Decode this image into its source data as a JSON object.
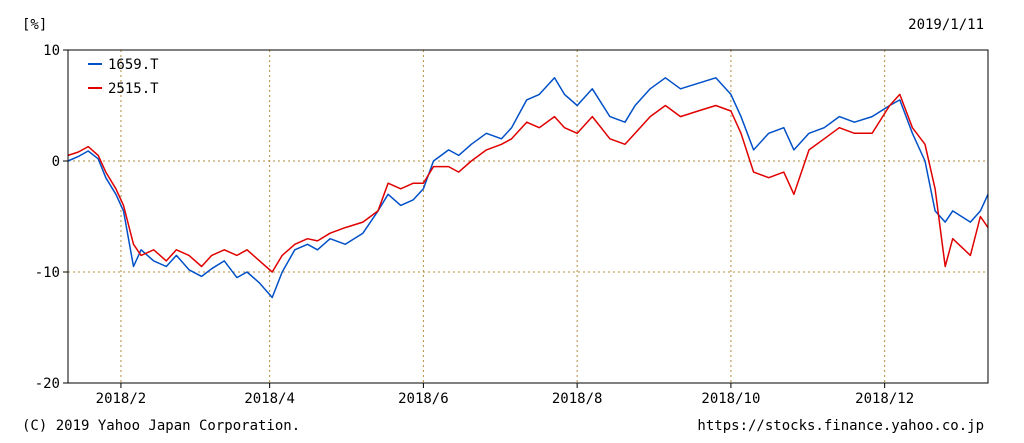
{
  "header": {
    "unit_label": "[%]",
    "date_label": "2019/1/11"
  },
  "footer": {
    "copyright": "(C) 2019 Yahoo Japan Corporation.",
    "url": "https://stocks.finance.yahoo.co.jp"
  },
  "colors": {
    "series_1659": "#0050c8",
    "series_2515": "#e00000",
    "grid": "#b48c3c",
    "axis": "#000000"
  },
  "chart_data": {
    "type": "line",
    "title": "",
    "xlabel": "",
    "ylabel": "[%]",
    "ylim": [
      -20,
      10
    ],
    "yticks": [
      10,
      0,
      -10,
      -20
    ],
    "xlim": [
      "2018-01-11",
      "2019-01-11"
    ],
    "xticks": [
      {
        "date": "2018-02-01",
        "label": "2018/2"
      },
      {
        "date": "2018-04-01",
        "label": "2018/4"
      },
      {
        "date": "2018-06-01",
        "label": "2018/6"
      },
      {
        "date": "2018-08-01",
        "label": "2018/8"
      },
      {
        "date": "2018-10-01",
        "label": "2018/10"
      },
      {
        "date": "2018-12-01",
        "label": "2018/12"
      }
    ],
    "grid": true,
    "legend": "top-left",
    "series": [
      {
        "name": "1659.T",
        "color": "#0050c8",
        "points": [
          [
            "2018-01-11",
            0.0
          ],
          [
            "2018-01-15",
            0.4
          ],
          [
            "2018-01-19",
            0.9
          ],
          [
            "2018-01-23",
            0.2
          ],
          [
            "2018-01-26",
            -1.5
          ],
          [
            "2018-01-30",
            -3.0
          ],
          [
            "2018-02-02",
            -4.5
          ],
          [
            "2018-02-06",
            -9.5
          ],
          [
            "2018-02-09",
            -8.0
          ],
          [
            "2018-02-14",
            -9.0
          ],
          [
            "2018-02-19",
            -9.5
          ],
          [
            "2018-02-23",
            -8.5
          ],
          [
            "2018-02-28",
            -9.8
          ],
          [
            "2018-03-05",
            -10.4
          ],
          [
            "2018-03-09",
            -9.7
          ],
          [
            "2018-03-14",
            -9.0
          ],
          [
            "2018-03-19",
            -10.5
          ],
          [
            "2018-03-23",
            -10.0
          ],
          [
            "2018-03-28",
            -11.0
          ],
          [
            "2018-04-02",
            -12.3
          ],
          [
            "2018-04-06",
            -10.0
          ],
          [
            "2018-04-11",
            -8.0
          ],
          [
            "2018-04-16",
            -7.5
          ],
          [
            "2018-04-20",
            -8.0
          ],
          [
            "2018-04-25",
            -7.0
          ],
          [
            "2018-05-01",
            -7.5
          ],
          [
            "2018-05-08",
            -6.5
          ],
          [
            "2018-05-14",
            -4.5
          ],
          [
            "2018-05-18",
            -3.0
          ],
          [
            "2018-05-23",
            -4.0
          ],
          [
            "2018-05-28",
            -3.5
          ],
          [
            "2018-06-01",
            -2.5
          ],
          [
            "2018-06-05",
            0.0
          ],
          [
            "2018-06-11",
            1.0
          ],
          [
            "2018-06-15",
            0.5
          ],
          [
            "2018-06-20",
            1.5
          ],
          [
            "2018-06-26",
            2.5
          ],
          [
            "2018-07-02",
            2.0
          ],
          [
            "2018-07-06",
            3.0
          ],
          [
            "2018-07-12",
            5.5
          ],
          [
            "2018-07-17",
            6.0
          ],
          [
            "2018-07-23",
            7.5
          ],
          [
            "2018-07-27",
            6.0
          ],
          [
            "2018-08-01",
            5.0
          ],
          [
            "2018-08-07",
            6.5
          ],
          [
            "2018-08-14",
            4.0
          ],
          [
            "2018-08-20",
            3.5
          ],
          [
            "2018-08-24",
            5.0
          ],
          [
            "2018-08-30",
            6.5
          ],
          [
            "2018-09-05",
            7.5
          ],
          [
            "2018-09-11",
            6.5
          ],
          [
            "2018-09-18",
            7.0
          ],
          [
            "2018-09-25",
            7.5
          ],
          [
            "2018-10-01",
            6.0
          ],
          [
            "2018-10-05",
            4.0
          ],
          [
            "2018-10-10",
            1.0
          ],
          [
            "2018-10-16",
            2.5
          ],
          [
            "2018-10-22",
            3.0
          ],
          [
            "2018-10-26",
            1.0
          ],
          [
            "2018-11-01",
            2.5
          ],
          [
            "2018-11-07",
            3.0
          ],
          [
            "2018-11-13",
            4.0
          ],
          [
            "2018-11-19",
            3.5
          ],
          [
            "2018-11-26",
            4.0
          ],
          [
            "2018-12-03",
            5.0
          ],
          [
            "2018-12-07",
            5.5
          ],
          [
            "2018-12-12",
            2.5
          ],
          [
            "2018-12-17",
            0.0
          ],
          [
            "2018-12-21",
            -4.5
          ],
          [
            "2018-12-25",
            -5.5
          ],
          [
            "2018-12-28",
            -4.5
          ],
          [
            "2019-01-04",
            -5.5
          ],
          [
            "2019-01-08",
            -4.5
          ],
          [
            "2019-01-11",
            -3.0
          ]
        ]
      },
      {
        "name": "2515.T",
        "color": "#e00000",
        "points": [
          [
            "2018-01-11",
            0.5
          ],
          [
            "2018-01-15",
            0.8
          ],
          [
            "2018-01-19",
            1.3
          ],
          [
            "2018-01-23",
            0.5
          ],
          [
            "2018-01-26",
            -1.0
          ],
          [
            "2018-01-30",
            -2.5
          ],
          [
            "2018-02-02",
            -4.0
          ],
          [
            "2018-02-06",
            -7.5
          ],
          [
            "2018-02-09",
            -8.5
          ],
          [
            "2018-02-14",
            -8.0
          ],
          [
            "2018-02-19",
            -9.0
          ],
          [
            "2018-02-23",
            -8.0
          ],
          [
            "2018-02-28",
            -8.5
          ],
          [
            "2018-03-05",
            -9.5
          ],
          [
            "2018-03-09",
            -8.5
          ],
          [
            "2018-03-14",
            -8.0
          ],
          [
            "2018-03-19",
            -8.5
          ],
          [
            "2018-03-23",
            -8.0
          ],
          [
            "2018-03-28",
            -9.0
          ],
          [
            "2018-04-02",
            -10.0
          ],
          [
            "2018-04-06",
            -8.5
          ],
          [
            "2018-04-11",
            -7.5
          ],
          [
            "2018-04-16",
            -7.0
          ],
          [
            "2018-04-20",
            -7.2
          ],
          [
            "2018-04-25",
            -6.5
          ],
          [
            "2018-05-01",
            -6.0
          ],
          [
            "2018-05-08",
            -5.5
          ],
          [
            "2018-05-14",
            -4.5
          ],
          [
            "2018-05-18",
            -2.0
          ],
          [
            "2018-05-23",
            -2.5
          ],
          [
            "2018-05-28",
            -2.0
          ],
          [
            "2018-06-01",
            -2.0
          ],
          [
            "2018-06-05",
            -0.5
          ],
          [
            "2018-06-11",
            -0.5
          ],
          [
            "2018-06-15",
            -1.0
          ],
          [
            "2018-06-20",
            0.0
          ],
          [
            "2018-06-26",
            1.0
          ],
          [
            "2018-07-02",
            1.5
          ],
          [
            "2018-07-06",
            2.0
          ],
          [
            "2018-07-12",
            3.5
          ],
          [
            "2018-07-17",
            3.0
          ],
          [
            "2018-07-23",
            4.0
          ],
          [
            "2018-07-27",
            3.0
          ],
          [
            "2018-08-01",
            2.5
          ],
          [
            "2018-08-07",
            4.0
          ],
          [
            "2018-08-14",
            2.0
          ],
          [
            "2018-08-20",
            1.5
          ],
          [
            "2018-08-24",
            2.5
          ],
          [
            "2018-08-30",
            4.0
          ],
          [
            "2018-09-05",
            5.0
          ],
          [
            "2018-09-11",
            4.0
          ],
          [
            "2018-09-18",
            4.5
          ],
          [
            "2018-09-25",
            5.0
          ],
          [
            "2018-10-01",
            4.5
          ],
          [
            "2018-10-05",
            2.5
          ],
          [
            "2018-10-10",
            -1.0
          ],
          [
            "2018-10-16",
            -1.5
          ],
          [
            "2018-10-22",
            -1.0
          ],
          [
            "2018-10-26",
            -3.0
          ],
          [
            "2018-11-01",
            1.0
          ],
          [
            "2018-11-07",
            2.0
          ],
          [
            "2018-11-13",
            3.0
          ],
          [
            "2018-11-19",
            2.5
          ],
          [
            "2018-11-26",
            2.5
          ],
          [
            "2018-12-03",
            5.0
          ],
          [
            "2018-12-07",
            6.0
          ],
          [
            "2018-12-12",
            3.0
          ],
          [
            "2018-12-17",
            1.5
          ],
          [
            "2018-12-21",
            -2.5
          ],
          [
            "2018-12-25",
            -9.5
          ],
          [
            "2018-12-28",
            -7.0
          ],
          [
            "2019-01-04",
            -8.5
          ],
          [
            "2019-01-08",
            -5.0
          ],
          [
            "2019-01-11",
            -6.0
          ]
        ]
      }
    ]
  }
}
